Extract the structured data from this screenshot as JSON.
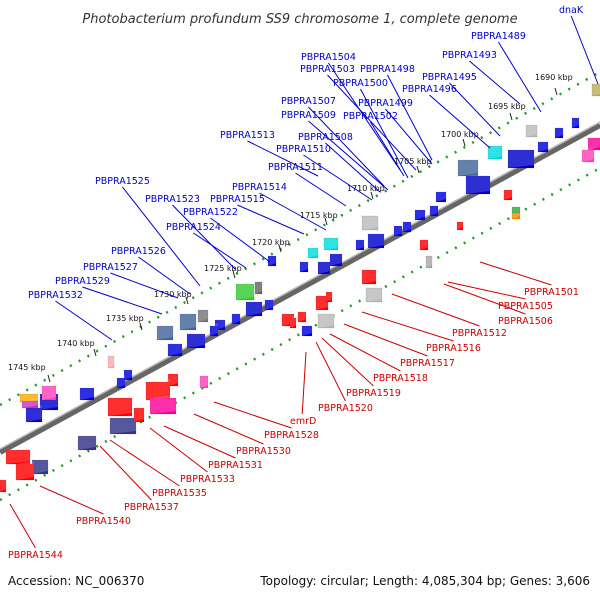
{
  "title": "Photobacterium profundum SS9 chromosome 1, complete genome",
  "footer": {
    "accession": "Accession: NC_006370",
    "summary": "Topology: circular; Length: 4,085,304 bp; Genes: 3,606"
  },
  "colors": {
    "top_label": "#0000cc",
    "bottom_label": "#cc0000",
    "backbone": "#888888",
    "tick": "#229922"
  },
  "ticks": [
    "1690 kbp",
    "1695 kbp",
    "1700 kbp",
    "1705 kbp",
    "1710 kbp",
    "1715 kbp",
    "1720 kbp",
    "1725 kbp",
    "1730 kbp",
    "1735 kbp",
    "1740 kbp",
    "1745 kbp"
  ],
  "top_labels": [
    "dnaK",
    "PBPRA1489",
    "PBPRA1493",
    "PBPRA1495",
    "PBPRA1496",
    "PBPRA1498",
    "PBPRA1504",
    "PBPRA1503",
    "PBPRA1500",
    "PBPRA1499",
    "PBPRA1502",
    "PBPRA1507",
    "PBPRA1509",
    "PBPRA1508",
    "PBPRA1510",
    "PBPRA1513",
    "PBPRA1511",
    "PBPRA1514",
    "PBPRA1515",
    "PBPRA1525",
    "PBPRA1523",
    "PBPRA1522",
    "PBPRA1524",
    "PBPRA1526",
    "PBPRA1527",
    "PBPRA1529",
    "PBPRA1532"
  ],
  "bottom_labels": [
    "PBPRA1501",
    "PBPRA1505",
    "PBPRA1506",
    "PBPRA1512",
    "PBPRA1516",
    "PBPRA1517",
    "PBPRA1518",
    "PBPRA1519",
    "PBPRA1520",
    "emrD",
    "PBPRA1528",
    "PBPRA1530",
    "PBPRA1531",
    "PBPRA1533",
    "PBPRA1535",
    "PBPRA1537",
    "PBPRA1540",
    "PBPRA1544"
  ]
}
